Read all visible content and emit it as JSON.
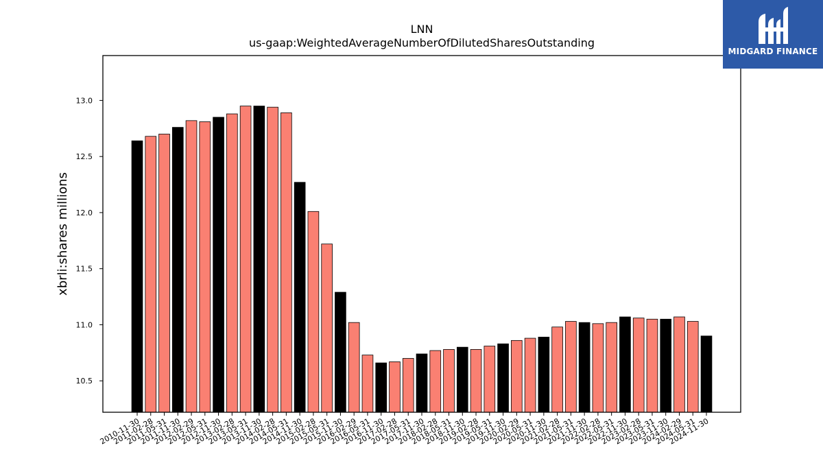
{
  "logo": {
    "text": "MIDGARD FINANCE",
    "icon": "midgard-logo-icon",
    "color": "#2d5aa8"
  },
  "chart_data": {
    "type": "bar",
    "title": "LNN",
    "subtitle": "us-gaap:WeightedAverageNumberOfDilutedSharesOutstanding",
    "xlabel": "",
    "ylabel": "xbrli:shares millions",
    "ylim": [
      10.22,
      13.4
    ],
    "yticks": [
      "10.5",
      "11.0",
      "11.5",
      "12.0",
      "12.5",
      "13.0"
    ],
    "grid": false,
    "colors": {
      "fiscal_year_end": "#000000",
      "quarter": "#fa8072"
    },
    "categories": [
      "2010-11-30",
      "2011-02-28",
      "2011-05-31",
      "2011-11-30",
      "2012-02-29",
      "2012-05-31",
      "2012-11-30",
      "2013-02-28",
      "2013-05-31",
      "2013-11-30",
      "2014-02-28",
      "2014-05-31",
      "2014-11-30",
      "2015-02-28",
      "2015-05-31",
      "2015-11-30",
      "2016-02-29",
      "2016-05-31",
      "2016-11-30",
      "2017-02-28",
      "2017-05-31",
      "2017-11-30",
      "2018-02-28",
      "2018-05-31",
      "2018-11-30",
      "2019-02-28",
      "2019-05-31",
      "2019-11-30",
      "2020-02-29",
      "2020-05-31",
      "2020-11-30",
      "2021-02-28",
      "2021-05-31",
      "2021-11-30",
      "2022-02-28",
      "2022-05-31",
      "2022-11-30",
      "2023-02-28",
      "2023-05-31",
      "2023-11-30",
      "2024-02-29",
      "2024-05-31",
      "2024-11-30"
    ],
    "values": [
      12.64,
      12.68,
      12.7,
      12.76,
      12.82,
      12.81,
      12.85,
      12.88,
      12.95,
      12.95,
      12.94,
      12.89,
      12.27,
      12.01,
      11.72,
      11.29,
      11.02,
      10.73,
      10.66,
      10.67,
      10.7,
      10.74,
      10.77,
      10.78,
      10.8,
      10.78,
      10.81,
      10.83,
      10.86,
      10.88,
      10.89,
      10.98,
      11.03,
      11.02,
      11.01,
      11.02,
      11.07,
      11.06,
      11.05,
      11.05,
      11.07,
      11.03,
      10.9
    ],
    "bar_type": [
      "fy",
      "q",
      "q",
      "fy",
      "q",
      "q",
      "fy",
      "q",
      "q",
      "fy",
      "q",
      "q",
      "fy",
      "q",
      "q",
      "fy",
      "q",
      "q",
      "fy",
      "q",
      "q",
      "fy",
      "q",
      "q",
      "fy",
      "q",
      "q",
      "fy",
      "q",
      "q",
      "fy",
      "q",
      "q",
      "fy",
      "q",
      "q",
      "fy",
      "q",
      "q",
      "fy",
      "q",
      "q",
      "fy"
    ]
  }
}
